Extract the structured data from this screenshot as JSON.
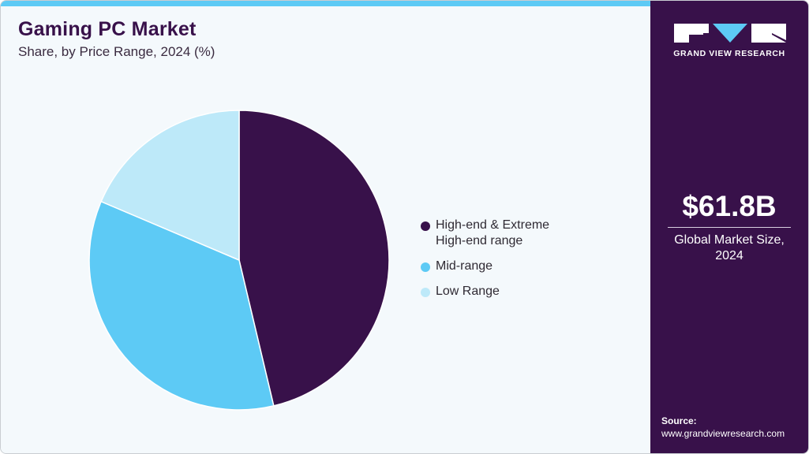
{
  "header": {
    "title": "Gaming PC Market",
    "subtitle": "Share, by Price Range, 2024 (%)"
  },
  "legend": [
    {
      "label_line1": "High-end & Extreme",
      "label_line2": "High-end range",
      "color": "#38114a"
    },
    {
      "label_line1": "Mid-range",
      "label_line2": "",
      "color": "#5dcaf5"
    },
    {
      "label_line1": "Low Range",
      "label_line2": "",
      "color": "#bde9f9"
    }
  ],
  "sidebar": {
    "brand": "GRAND VIEW RESEARCH",
    "market_size": "$61.8B",
    "market_size_label_line1": "Global Market Size,",
    "market_size_label_line2": "2024",
    "source_label": "Source:",
    "source_url": "www.grandviewresearch.com"
  },
  "colors": {
    "accent": "#5dcaf5",
    "brand": "#38114a",
    "background": "#f4f9fc"
  },
  "chart_data": {
    "type": "pie",
    "title": "Gaming PC Market",
    "subtitle": "Share, by Price Range, 2024 (%)",
    "categories": [
      "High-end & Extreme High-end range",
      "Mid-range",
      "Low Range"
    ],
    "values": [
      46.3,
      35.1,
      18.6
    ],
    "colors": [
      "#38114a",
      "#5dcaf5",
      "#bde9f9"
    ],
    "start_angle_deg": 0,
    "direction": "clockwise",
    "legend_position": "right"
  }
}
